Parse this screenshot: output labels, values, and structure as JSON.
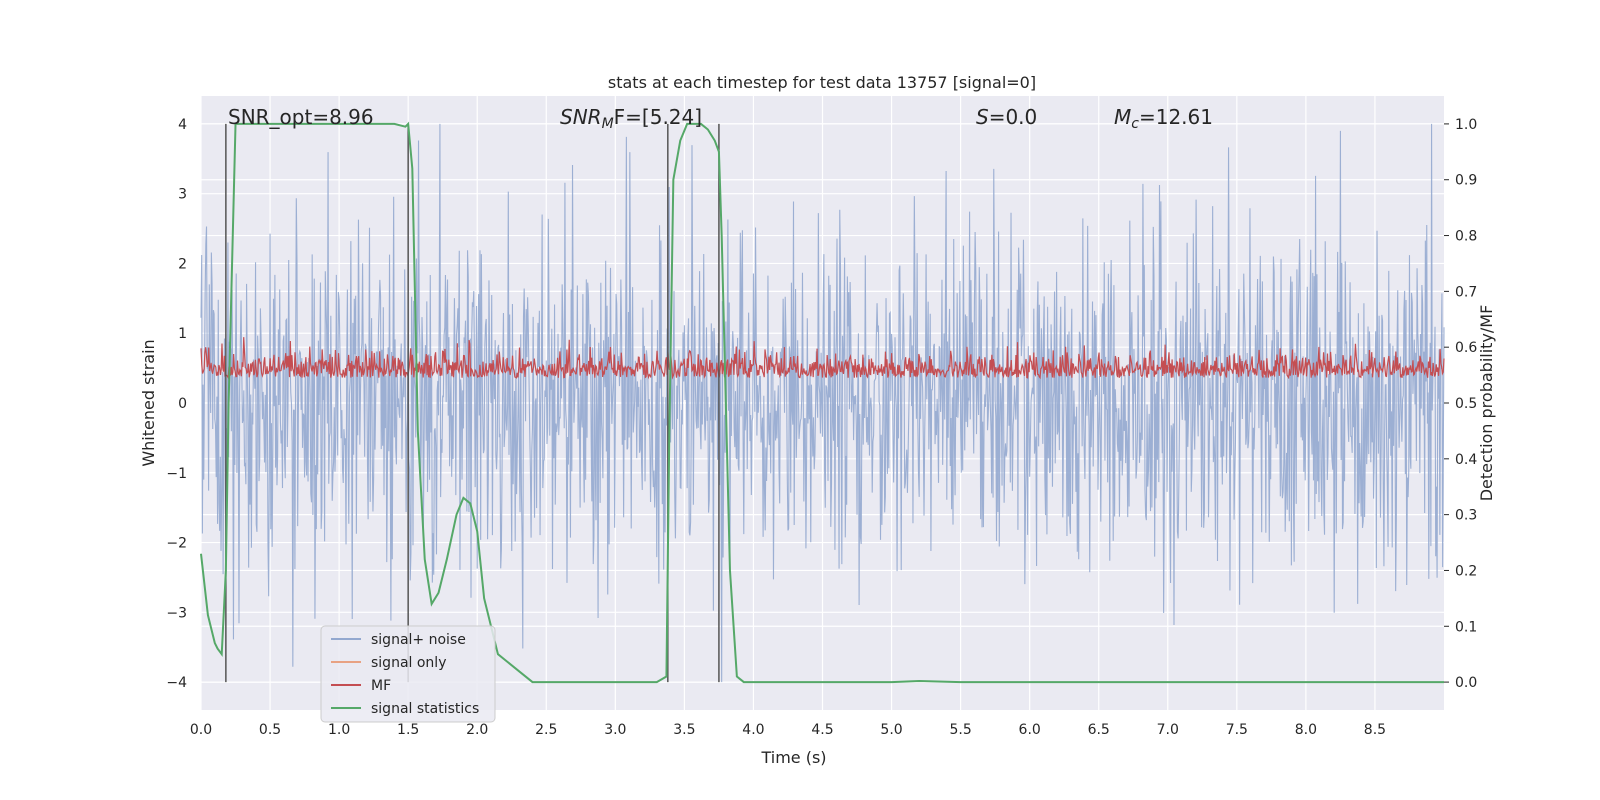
{
  "chart_data": {
    "type": "line",
    "title": "stats at each timestep for test data 13757 [signal=0]",
    "xlabel": "Time (s)",
    "ylabel_left": "Whitened strain",
    "ylabel_right": "Detection probability/MF",
    "xlim": [
      0.0,
      9.0
    ],
    "ylim_left": [
      -4.4,
      4.4
    ],
    "ylim_right": [
      -0.05,
      1.05
    ],
    "xticks": [
      "0.0",
      "0.5",
      "1.0",
      "1.5",
      "2.0",
      "2.5",
      "3.0",
      "3.5",
      "4.0",
      "4.5",
      "5.0",
      "5.5",
      "6.0",
      "6.5",
      "7.0",
      "7.5",
      "8.0",
      "8.5"
    ],
    "yticks_left": [
      "4",
      "3",
      "2",
      "1",
      "0",
      "−1",
      "−2",
      "−3",
      "−4"
    ],
    "yticks_right": [
      "1.0",
      "0.9",
      "0.8",
      "0.7",
      "0.6",
      "0.5",
      "0.4",
      "0.3",
      "0.2",
      "0.1",
      "0.0"
    ],
    "grid": true,
    "legend_position": "lower-left",
    "annotations": {
      "snr_opt": "SNR_opt=8.96",
      "snr_mf_sym": "SNR",
      "snr_mf_sub": "M",
      "snr_mf_rest": "F=[5.24]",
      "s_sym": "S",
      "s_rest": "=0.0",
      "mc_sym": "M",
      "mc_sub": "c",
      "mc_rest": "=12.61"
    },
    "vertical_lines_x": [
      0.18,
      1.5,
      3.38,
      3.75
    ],
    "series": [
      {
        "name": "signal+ noise",
        "color": "#93a8cf",
        "axis": "left",
        "description_range": [
          -4.0,
          4.0
        ]
      },
      {
        "name": "signal only",
        "color": "#e8a283",
        "axis": "left"
      },
      {
        "name": "MF",
        "color": "#c44e52",
        "axis": "right",
        "description_range": [
          0.5,
          0.63
        ]
      },
      {
        "name": "signal statistics",
        "color": "#55a868",
        "axis": "right",
        "x": [
          0.0,
          0.05,
          0.1,
          0.12,
          0.15,
          0.18,
          0.2,
          0.25,
          0.3,
          0.5,
          1.0,
          1.4,
          1.48,
          1.5,
          1.53,
          1.57,
          1.62,
          1.67,
          1.72,
          1.78,
          1.85,
          1.9,
          1.95,
          2.0,
          2.05,
          2.15,
          2.3,
          2.4,
          2.6,
          3.0,
          3.3,
          3.37,
          3.39,
          3.42,
          3.47,
          3.52,
          3.57,
          3.62,
          3.67,
          3.72,
          3.75,
          3.77,
          3.8,
          3.83,
          3.88,
          3.93,
          4.0,
          4.5,
          5.0,
          5.2,
          5.5,
          6.0,
          7.0,
          8.0,
          9.0
        ],
        "values": [
          0.23,
          0.12,
          0.07,
          0.06,
          0.05,
          0.2,
          0.5,
          1.0,
          1.0,
          1.0,
          1.0,
          1.0,
          0.995,
          1.0,
          0.92,
          0.45,
          0.22,
          0.14,
          0.16,
          0.22,
          0.3,
          0.33,
          0.32,
          0.27,
          0.15,
          0.05,
          0.02,
          0.0,
          0.0,
          0.0,
          0.0,
          0.01,
          0.43,
          0.9,
          0.97,
          1.0,
          1.0,
          1.0,
          0.99,
          0.97,
          0.95,
          0.8,
          0.5,
          0.2,
          0.01,
          0.0,
          0.0,
          0.0,
          0.0,
          0.002,
          0.0,
          0.0,
          0.0,
          0.0,
          0.0
        ]
      }
    ]
  }
}
